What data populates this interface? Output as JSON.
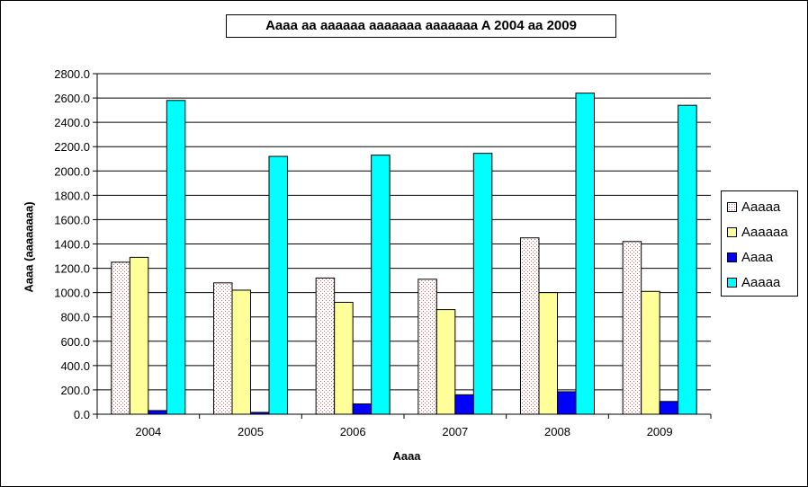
{
  "chart_data": {
    "type": "bar",
    "title": "Aaaa aa aaaaaa aaaaaaa aaaaaaa A 2004 aa 2009",
    "xlabel": "Aaaa",
    "ylabel": "Aaaa (aaaaaaaa)",
    "categories": [
      "2004",
      "2005",
      "2006",
      "2007",
      "2008",
      "2009"
    ],
    "ylim": [
      0,
      2800
    ],
    "ytick_step": 200,
    "ytick_labels": [
      "0.0",
      "200.0",
      "400.0",
      "600.0",
      "800.0",
      "1000.0",
      "1200.0",
      "1400.0",
      "1600.0",
      "1800.0",
      "2000.0",
      "2200.0",
      "2400.0",
      "2600.0",
      "2800.0"
    ],
    "grid": true,
    "legend_position": "right",
    "series": [
      {
        "name": "Aaaaa",
        "values": [
          1250,
          1080,
          1120,
          1110,
          1450,
          1420
        ],
        "color": "#ffcccc",
        "pattern": "dots"
      },
      {
        "name": "Aaaaaa",
        "values": [
          1290,
          1020,
          920,
          860,
          1000,
          1010
        ],
        "color": "#ffff99",
        "pattern": "none"
      },
      {
        "name": "Aaaa",
        "values": [
          30,
          15,
          85,
          160,
          185,
          105
        ],
        "color": "#0000ff",
        "pattern": "none"
      },
      {
        "name": "Aaaaa",
        "values": [
          2580,
          2120,
          2130,
          2145,
          2640,
          2540
        ],
        "color": "#00ffff",
        "pattern": "none"
      }
    ]
  }
}
